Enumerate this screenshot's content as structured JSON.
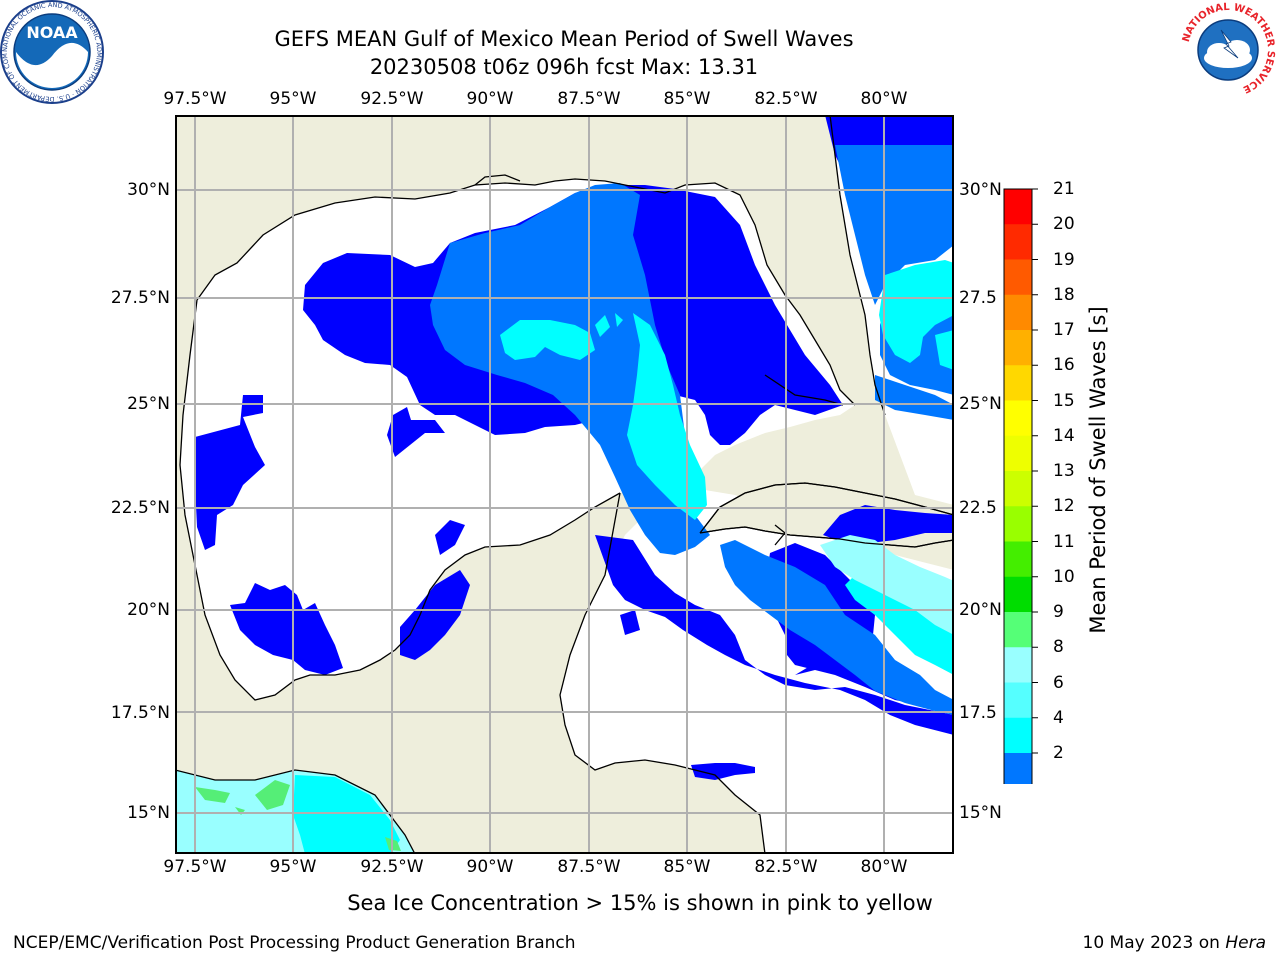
{
  "header": {
    "title_line1": "GEFS MEAN Gulf of Mexico Mean Period of Swell Waves",
    "title_line2": "20230508 t06z 096h fcst   Max: 13.31"
  },
  "logos": {
    "noara": "NOAA",
    "noara_ring": "NATIONAL OCEANIC AND ATMOSPHERIC ADMINISTRATION · U.S. DEPARTMENT OF COMMERCE",
    "nws_ring": "NATIONAL WEATHER SERVICE"
  },
  "axes": {
    "lon_labels": [
      "97.5°W",
      "95°W",
      "92.5°W",
      "90°W",
      "87.5°W",
      "85°W",
      "82.5°W",
      "80°W"
    ],
    "lat_labels_left": [
      "30°N",
      "27.5°N",
      "25°N",
      "22.5°N",
      "20°N",
      "17.5°N",
      "15°N"
    ],
    "lat_labels_right": [
      "30°N",
      "27.5",
      "25°N",
      "22.5",
      "20°N",
      "17.5",
      "15°N"
    ]
  },
  "colorbar": {
    "title": "Mean Period of Swell Waves [s]",
    "labels": [
      "21",
      "20",
      "19",
      "18",
      "17",
      "16",
      "15",
      "14",
      "13",
      "12",
      "11",
      "10",
      "9",
      "8",
      "6",
      "4",
      "2"
    ],
    "colors": [
      "#ff0000",
      "#ff2a00",
      "#ff5a00",
      "#ff8a00",
      "#ffb000",
      "#ffd800",
      "#ffff00",
      "#eeff00",
      "#ccff00",
      "#99ff00",
      "#44ee00",
      "#00dd00",
      "#55ff77",
      "#99ffff",
      "#55ffff",
      "#00ffff",
      "#0077ff"
    ],
    "extend_color": "#0000ff"
  },
  "colors": {
    "land": "#eeeedc",
    "level_2_4": "#0000ff",
    "level_4_6": "#0077ff",
    "level_6_8": "#00ffff",
    "level_8_9": "#99ffff"
  },
  "note": "Sea Ice Concentration > 15% is shown in pink to yellow",
  "footer": {
    "left": "NCEP/EMC/Verification Post Processing Product Generation Branch",
    "right_prefix": "10 May 2023 on ",
    "right_host": "Hera"
  }
}
